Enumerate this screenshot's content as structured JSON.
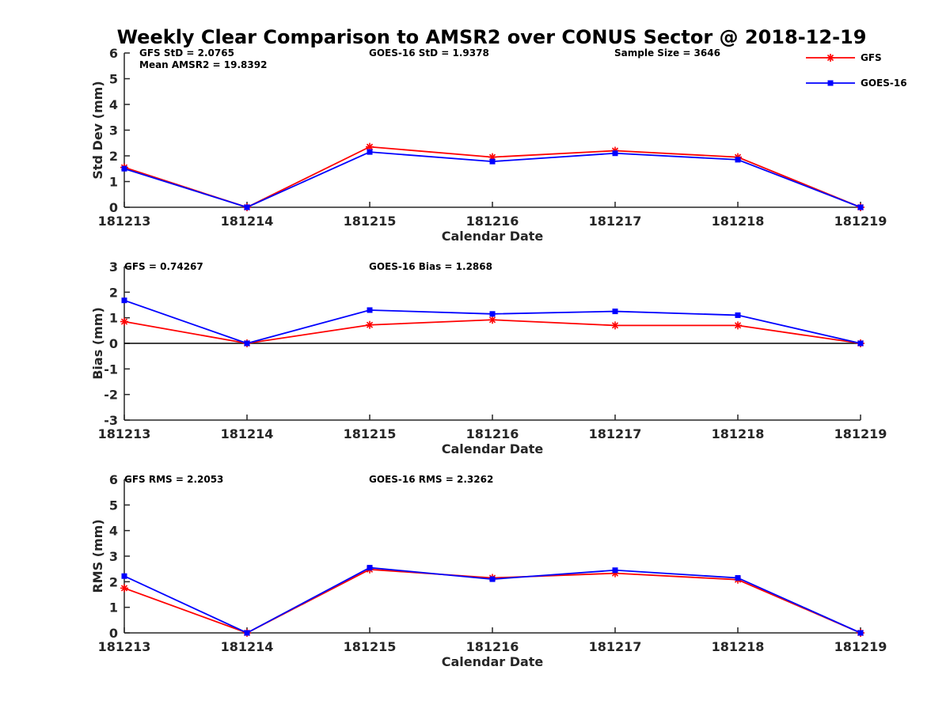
{
  "title": "Weekly Clear Comparison to AMSR2 over CONUS Sector @ 2018-12-19",
  "legend": [
    {
      "label": "GFS",
      "color": "#ff0000",
      "marker": "asterisk"
    },
    {
      "label": "GOES-16",
      "color": "#0000ff",
      "marker": "square"
    }
  ],
  "chart_data": [
    {
      "type": "line",
      "xlabel": "Calendar Date",
      "ylabel": "Std Dev (mm)",
      "x": [
        "181213",
        "181214",
        "181215",
        "181216",
        "181217",
        "181218",
        "181219"
      ],
      "ylim": [
        0,
        6
      ],
      "yticks": [
        "0",
        "1",
        "2",
        "3",
        "4",
        "5",
        "6"
      ],
      "series": [
        {
          "name": "GFS",
          "color": "#ff0000",
          "values": [
            1.55,
            0.0,
            2.35,
            1.95,
            2.2,
            1.95,
            0.0
          ]
        },
        {
          "name": "GOES-16",
          "color": "#0000ff",
          "values": [
            1.5,
            0.0,
            2.15,
            1.78,
            2.1,
            1.85,
            0.0
          ]
        }
      ],
      "annotations": [
        {
          "id": "gfs-std",
          "text": "GFS StD = 2.0765"
        },
        {
          "id": "mean-amsr2",
          "text": "Mean AMSR2 = 19.8392"
        },
        {
          "id": "goes-std",
          "text": "GOES-16 StD = 1.9378"
        },
        {
          "id": "sample-size",
          "text": "Sample Size = 3646"
        }
      ]
    },
    {
      "type": "line",
      "xlabel": "Calendar Date",
      "ylabel": "Bias (mm)",
      "x": [
        "181213",
        "181214",
        "181215",
        "181216",
        "181217",
        "181218",
        "181219"
      ],
      "ylim": [
        -3,
        3
      ],
      "yticks": [
        "-3",
        "-2",
        "-1",
        "0",
        "1",
        "2",
        "3"
      ],
      "zero_line": true,
      "series": [
        {
          "name": "GFS",
          "color": "#ff0000",
          "values": [
            0.85,
            0.0,
            0.72,
            0.92,
            0.7,
            0.7,
            0.0
          ]
        },
        {
          "name": "GOES-16",
          "color": "#0000ff",
          "values": [
            1.68,
            0.0,
            1.3,
            1.15,
            1.25,
            1.1,
            0.0
          ]
        }
      ],
      "annotations": [
        {
          "id": "gfs-bias",
          "text": "GFS = 0.74267"
        },
        {
          "id": "goes-bias",
          "text": "GOES-16 Bias  = 1.2868"
        }
      ]
    },
    {
      "type": "line",
      "xlabel": "Calendar Date",
      "ylabel": "RMS (mm)",
      "x": [
        "181213",
        "181214",
        "181215",
        "181216",
        "181217",
        "181218",
        "181219"
      ],
      "ylim": [
        0,
        6
      ],
      "yticks": [
        "0",
        "1",
        "2",
        "3",
        "4",
        "5",
        "6"
      ],
      "series": [
        {
          "name": "GFS",
          "color": "#ff0000",
          "values": [
            1.75,
            0.0,
            2.48,
            2.15,
            2.33,
            2.08,
            0.0
          ]
        },
        {
          "name": "GOES-16",
          "color": "#0000ff",
          "values": [
            2.22,
            0.0,
            2.55,
            2.1,
            2.45,
            2.15,
            0.0
          ]
        }
      ],
      "annotations": [
        {
          "id": "gfs-rms",
          "text": "GFS RMS = 2.2053"
        },
        {
          "id": "goes-rms",
          "text": "GOES-16 RMS = 2.3262"
        }
      ]
    }
  ]
}
